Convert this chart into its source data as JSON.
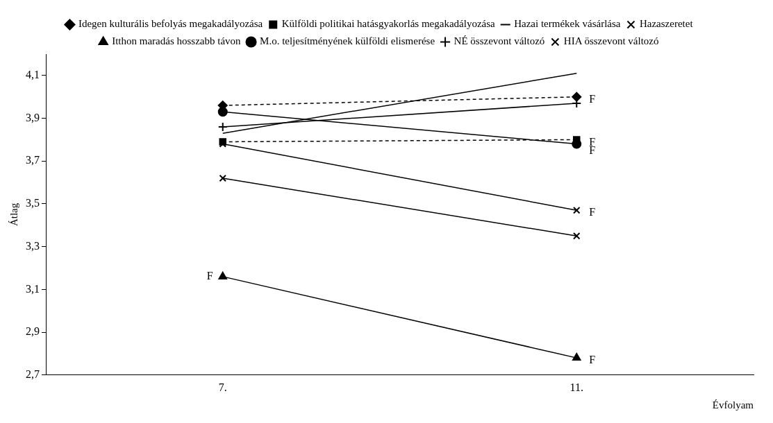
{
  "chart_data": {
    "type": "line",
    "xlabel": "Évfolyam",
    "ylabel": "Átlag",
    "categories": [
      "7.",
      "11."
    ],
    "ylim": [
      2.7,
      4.2
    ],
    "yticks": [
      {
        "value": 2.7,
        "label": "2,7"
      },
      {
        "value": 2.9,
        "label": "2,9"
      },
      {
        "value": 3.1,
        "label": "3,1"
      },
      {
        "value": 3.3,
        "label": "3,3"
      },
      {
        "value": 3.5,
        "label": "3,5"
      },
      {
        "value": 3.7,
        "label": "3,7"
      },
      {
        "value": 3.9,
        "label": "3,9"
      },
      {
        "value": 4.1,
        "label": "4,1"
      }
    ],
    "grid": false,
    "legend": "top",
    "series": [
      {
        "name": "Idegen kulturális befolyás megakadályozása",
        "color": "#000000",
        "marker": "diamond",
        "line_style": "dashed",
        "values": [
          3.96,
          4.0
        ]
      },
      {
        "name": "Külföldi politikai hatásgyakorlás megakadályozása",
        "color": "#000000",
        "marker": "square",
        "line_style": "dashed",
        "values": [
          3.79,
          3.8
        ]
      },
      {
        "name": "Hazai termékek vásárlása",
        "color": "#000000",
        "marker": "none",
        "line_style": "solid",
        "values": [
          3.83,
          4.11
        ]
      },
      {
        "name": "Hazaszeretet",
        "color": "#000000",
        "marker": "cross",
        "line_style": "solid",
        "values": [
          3.78,
          3.47
        ]
      },
      {
        "name": "Itthon maradás hosszabb távon",
        "color": "#000000",
        "marker": "triangle",
        "line_style": "solid",
        "values": [
          3.16,
          2.78
        ]
      },
      {
        "name": "M.o. teljesítményének külföldi elismerése",
        "color": "#000000",
        "marker": "circle",
        "line_style": "solid",
        "values": [
          3.93,
          3.78
        ]
      },
      {
        "name": "NÉ összevont változó",
        "color": "#000000",
        "marker": "plus",
        "line_style": "solid",
        "values": [
          3.86,
          3.97
        ]
      },
      {
        "name": "HIA összevont változó",
        "color": "#000000",
        "marker": "cross",
        "line_style": "solid",
        "values": [
          3.62,
          3.35
        ]
      }
    ],
    "annotations": [
      {
        "text": "F",
        "x": "7.",
        "y": 3.16
      },
      {
        "text": "F",
        "x": "11.",
        "y": 4.0
      },
      {
        "text": "F",
        "x": "11.",
        "y": 3.8
      },
      {
        "text": "F",
        "x": "11.",
        "y": 3.76
      },
      {
        "text": "F",
        "x": "11.",
        "y": 3.47
      },
      {
        "text": "F",
        "x": "11.",
        "y": 2.78
      }
    ]
  }
}
